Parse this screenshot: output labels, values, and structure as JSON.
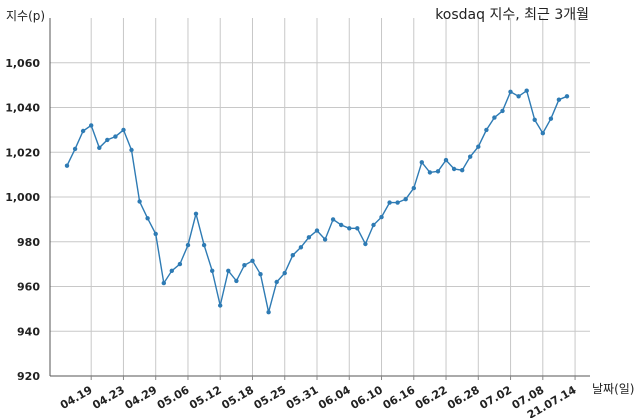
{
  "chart_data": {
    "type": "line",
    "title": "kosdaq 지수, 최근 3개월",
    "ylabel": "지수(p)",
    "xlabel": "날짜(일)",
    "ylim": [
      920,
      1080
    ],
    "yticks": [
      920,
      940,
      960,
      980,
      "1,000",
      "1,020",
      "1,040",
      "1,060"
    ],
    "yticks_values": [
      920,
      940,
      960,
      980,
      1000,
      1020,
      1040,
      1060
    ],
    "xticks": [
      "04.19",
      "04.23",
      "04.29",
      "05.06",
      "05.12",
      "05.18",
      "05.25",
      "05.31",
      "06.04",
      "06.10",
      "06.16",
      "06.22",
      "06.28",
      "07.02",
      "07.08",
      "21.07.14"
    ],
    "xtick_index": [
      3,
      7,
      11,
      15,
      19,
      23,
      27,
      31,
      35,
      39,
      43,
      47,
      51,
      55,
      59,
      63
    ],
    "grid": true,
    "color": "#2e7bb4",
    "series": [
      {
        "values": [
          1014,
          1021.5,
          1029.5,
          1032,
          1022,
          1025.5,
          1027,
          1030,
          1021,
          998,
          990.5,
          983.5,
          961.5,
          967,
          970,
          978.5,
          992.5,
          978.5,
          967,
          951.5,
          967,
          962.5,
          969.5,
          971.5,
          965.5,
          948.5,
          962,
          966,
          974,
          977.5,
          982,
          985,
          981,
          990,
          987.5,
          986,
          986,
          979,
          987.5,
          991,
          997.5,
          997.5,
          999,
          1004,
          1015.5,
          1011,
          1011.5,
          1016.5,
          1012.5,
          1012,
          1018,
          1022.5,
          1030,
          1035.5,
          1038.5,
          1047,
          1045,
          1047.5,
          1034.5,
          1028.5,
          1035,
          1043.5,
          1045
        ]
      }
    ]
  }
}
